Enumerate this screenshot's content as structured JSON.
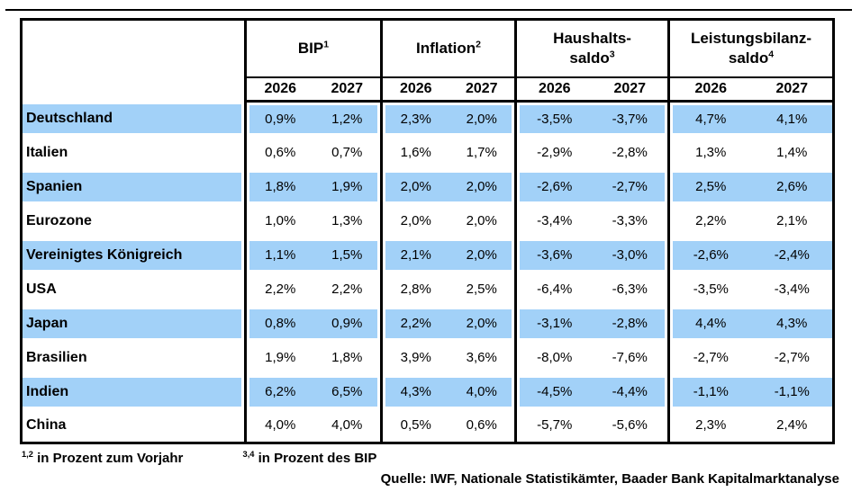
{
  "table": {
    "groups": [
      {
        "label": "BIP",
        "sup": "1"
      },
      {
        "label": "Inflation",
        "sup": "2"
      },
      {
        "label": "Haushalts-\nsaldo",
        "sup": "3"
      },
      {
        "label": "Leistungsbilanz-\nsaldo",
        "sup": "4"
      }
    ],
    "years": [
      "2026",
      "2027",
      "2026",
      "2027",
      "2026",
      "2027",
      "2026",
      "2027"
    ],
    "rows": [
      {
        "country": "Deutschland",
        "highlight": true,
        "values": [
          "0,9%",
          "1,2%",
          "2,3%",
          "2,0%",
          "-3,5%",
          "-3,7%",
          "4,7%",
          "4,1%"
        ]
      },
      {
        "country": "Italien",
        "highlight": false,
        "values": [
          "0,6%",
          "0,7%",
          "1,6%",
          "1,7%",
          "-2,9%",
          "-2,8%",
          "1,3%",
          "1,4%"
        ]
      },
      {
        "country": "Spanien",
        "highlight": true,
        "values": [
          "1,8%",
          "1,9%",
          "2,0%",
          "2,0%",
          "-2,6%",
          "-2,7%",
          "2,5%",
          "2,6%"
        ]
      },
      {
        "country": "Eurozone",
        "highlight": false,
        "values": [
          "1,0%",
          "1,3%",
          "2,0%",
          "2,0%",
          "-3,4%",
          "-3,3%",
          "2,2%",
          "2,1%"
        ]
      },
      {
        "country": "Vereinigtes Königreich",
        "highlight": true,
        "values": [
          "1,1%",
          "1,5%",
          "2,1%",
          "2,0%",
          "-3,6%",
          "-3,0%",
          "-2,6%",
          "-2,4%"
        ]
      },
      {
        "country": "USA",
        "highlight": false,
        "values": [
          "2,2%",
          "2,2%",
          "2,8%",
          "2,5%",
          "-6,4%",
          "-6,3%",
          "-3,5%",
          "-3,4%"
        ]
      },
      {
        "country": "Japan",
        "highlight": true,
        "values": [
          "0,8%",
          "0,9%",
          "2,2%",
          "2,0%",
          "-3,1%",
          "-2,8%",
          "4,4%",
          "4,3%"
        ]
      },
      {
        "country": "Brasilien",
        "highlight": false,
        "values": [
          "1,9%",
          "1,8%",
          "3,9%",
          "3,6%",
          "-8,0%",
          "-7,6%",
          "-2,7%",
          "-2,7%"
        ]
      },
      {
        "country": "Indien",
        "highlight": true,
        "values": [
          "6,2%",
          "6,5%",
          "4,3%",
          "4,0%",
          "-4,5%",
          "-4,4%",
          "-1,1%",
          "-1,1%"
        ]
      },
      {
        "country": "China",
        "highlight": false,
        "values": [
          "4,0%",
          "4,0%",
          "0,5%",
          "0,6%",
          "-5,7%",
          "-5,6%",
          "2,3%",
          "2,4%"
        ]
      }
    ]
  },
  "footnotes": {
    "n12_sup": "1,2",
    "n12_text": "in Prozent zum Vorjahr",
    "n34_sup": "3,4",
    "n34_text": "in Prozent des BIP"
  },
  "source": "Quelle: IWF, Nationale Statistikämter, Baader Bank Kapitalmarktanalyse",
  "colors": {
    "highlight": "#a2d1f8",
    "border": "#000000"
  }
}
